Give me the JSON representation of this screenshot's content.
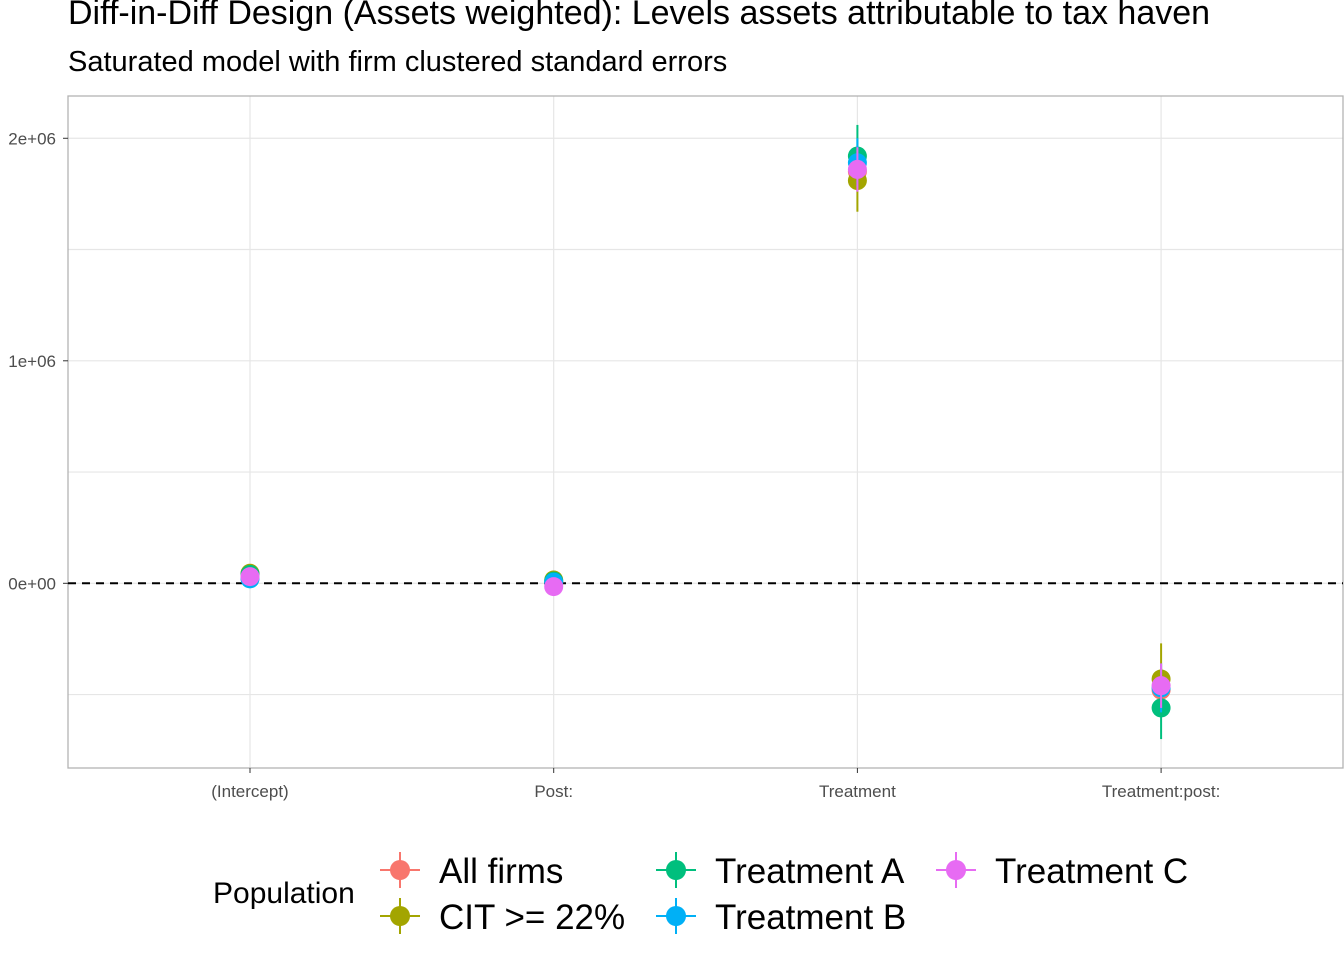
{
  "chart_data": {
    "type": "scatter",
    "title": "Diff-in-Diff Design (Assets weighted): Levels assets attributable to tax haven",
    "subtitle": "Saturated model with firm clustered standard errors",
    "xlabel": "",
    "ylabel": "",
    "categories": [
      "(Intercept)",
      "Post:",
      "Treatment",
      "Treatment:post:"
    ],
    "ylim": [
      -830000,
      2190000
    ],
    "y_ticks": [
      0,
      1000000,
      2000000
    ],
    "y_tick_labels": [
      "0e+00",
      "1e+06",
      "2e+06"
    ],
    "reference_line": {
      "y": 0,
      "style": "dashed"
    },
    "grid": true,
    "legend": {
      "title": "Population",
      "placement": "bottom"
    },
    "series": [
      {
        "name": "All firms",
        "color": "#F8766D",
        "values": [
          30000,
          5000,
          1850000,
          -480000
        ],
        "ci_low": [
          10000,
          -10000,
          1760000,
          -580000
        ],
        "ci_high": [
          50000,
          20000,
          1940000,
          -380000
        ]
      },
      {
        "name": "CIT >= 22%",
        "color": "#A3A500",
        "values": [
          45000,
          15000,
          1810000,
          -430000
        ],
        "ci_low": [
          25000,
          0,
          1670000,
          -560000
        ],
        "ci_high": [
          65000,
          30000,
          1950000,
          -270000
        ]
      },
      {
        "name": "Treatment A",
        "color": "#00BF7D",
        "values": [
          40000,
          10000,
          1920000,
          -560000
        ],
        "ci_low": [
          20000,
          -5000,
          1790000,
          -700000
        ],
        "ci_high": [
          60000,
          25000,
          2060000,
          -420000
        ]
      },
      {
        "name": "Treatment B",
        "color": "#00B0F6",
        "values": [
          20000,
          5000,
          1890000,
          -470000
        ],
        "ci_low": [
          0,
          -10000,
          1780000,
          -580000
        ],
        "ci_high": [
          40000,
          20000,
          2000000,
          -360000
        ]
      },
      {
        "name": "Treatment C",
        "color": "#E76BF3",
        "values": [
          30000,
          -15000,
          1860000,
          -460000
        ],
        "ci_low": [
          10000,
          -30000,
          1760000,
          -560000
        ],
        "ci_high": [
          50000,
          0,
          1960000,
          -360000
        ]
      }
    ]
  }
}
